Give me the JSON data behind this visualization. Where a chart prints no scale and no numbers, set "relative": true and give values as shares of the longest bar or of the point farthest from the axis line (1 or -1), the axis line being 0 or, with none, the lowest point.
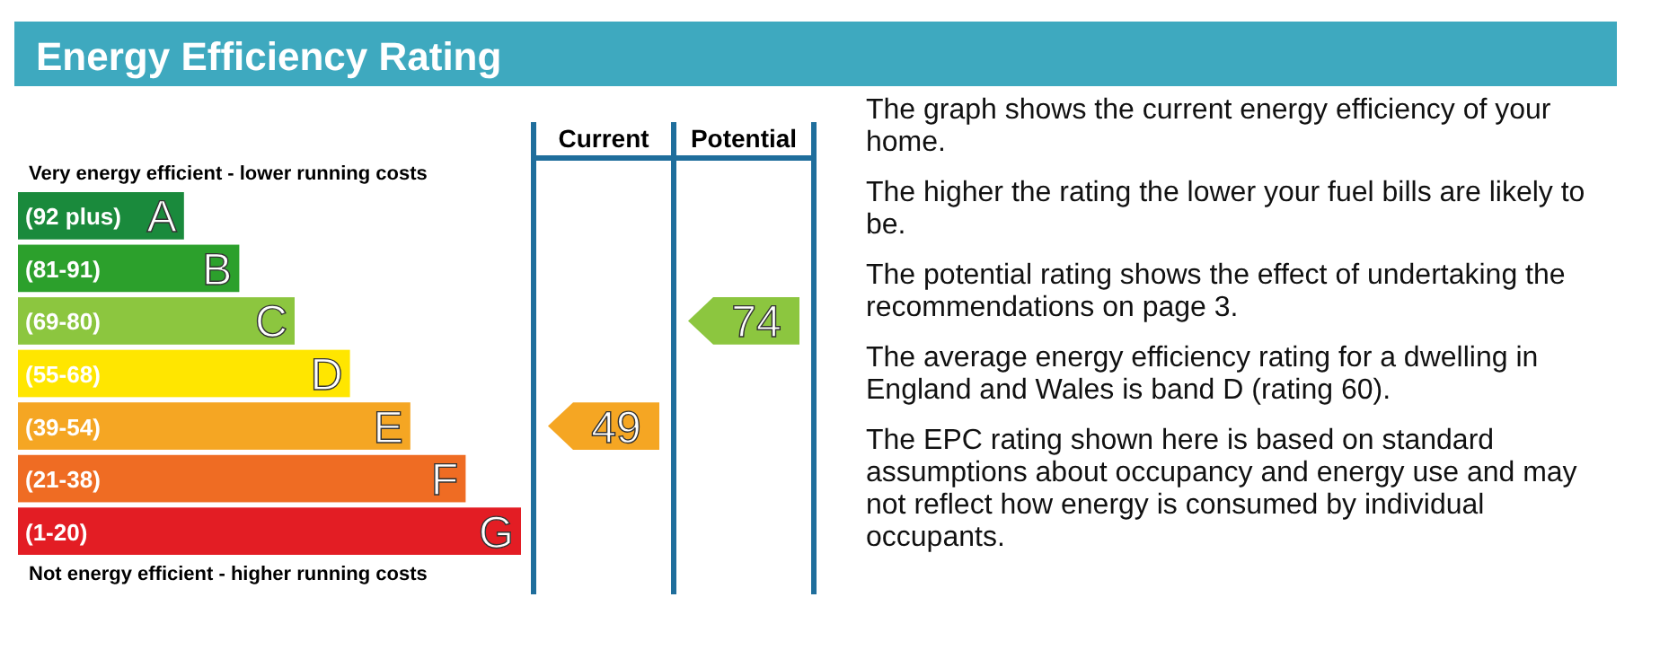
{
  "chart_data": [
    {
      "type": "bar",
      "orientation": "horizontal",
      "relative": true,
      "title": "Energy Efficiency Rating",
      "categories": [
        "(92 plus)",
        "(81-91)",
        "(69-80)",
        "(55-68)",
        "(39-54)",
        "(21-38)",
        "(1-20)"
      ],
      "colors": [
        "#1a8a3c",
        "#2ca02c",
        "#8cc63f",
        "#ffe600",
        "#f5a623",
        "#ef6c23",
        "#e31d24"
      ],
      "values": [
        0.33,
        0.44,
        0.55,
        0.66,
        0.78,
        0.89,
        1
      ],
      "annotations": [
        {
          "text": "A",
          "x": 0.33,
          "y": "(92 plus)"
        },
        {
          "text": "B",
          "x": 0.44,
          "y": "(81-91)"
        },
        {
          "text": "C",
          "x": 0.55,
          "y": "(69-80)"
        },
        {
          "text": "D",
          "x": 0.66,
          "y": "(55-68)"
        },
        {
          "text": "E",
          "x": 0.78,
          "y": "(39-54)"
        },
        {
          "text": "F",
          "x": 0.89,
          "y": "(21-38)"
        },
        {
          "text": "G",
          "x": 1,
          "y": "(1-20)"
        },
        "Very energy efficient - lower running costs",
        "Not energy efficient - higher running costs",
        "The graph shows the current energy efficiency of your home.",
        "The higher the rating the lower your fuel bills are likely to be.",
        "The potential rating shows the effect of undertaking the recommendations on page 3.",
        "The average energy efficiency rating for a dwelling in England and Wales is band D (rating 60).",
        "The EPC rating shown here is based on standard assumptions about occupancy and energy use and may not reflect how energy is consumed by individual occupants."
      ]
    },
    {
      "type": "other",
      "categories": [
        "Current",
        "Potential"
      ],
      "values": [
        49,
        74
      ],
      "data_labels": true
    }
  ]
}
